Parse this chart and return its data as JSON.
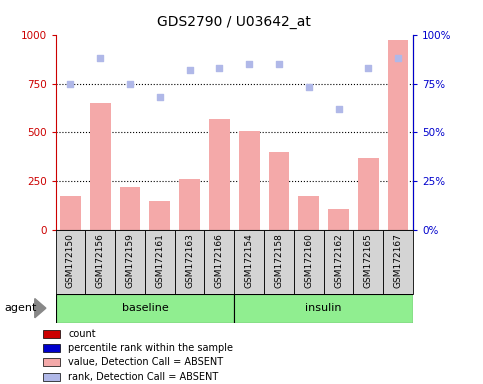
{
  "title": "GDS2790 / U03642_at",
  "samples": [
    "GSM172150",
    "GSM172156",
    "GSM172159",
    "GSM172161",
    "GSM172163",
    "GSM172166",
    "GSM172154",
    "GSM172158",
    "GSM172160",
    "GSM172162",
    "GSM172165",
    "GSM172167"
  ],
  "bar_values": [
    175,
    650,
    220,
    150,
    260,
    570,
    510,
    400,
    175,
    110,
    370,
    970
  ],
  "scatter_values": [
    75,
    88,
    75,
    68,
    82,
    83,
    85,
    85,
    73,
    62,
    83,
    88
  ],
  "bar_color_absent": "#f4a9a9",
  "scatter_color_absent": "#b0b8e8",
  "left_ylim": [
    0,
    1000
  ],
  "right_ylim": [
    0,
    100
  ],
  "left_yticks": [
    0,
    250,
    500,
    750,
    1000
  ],
  "right_yticks": [
    0,
    25,
    50,
    75,
    100
  ],
  "right_yticklabels": [
    "0%",
    "25%",
    "50%",
    "75%",
    "100%"
  ],
  "baseline_samples": 6,
  "insulin_samples": 6,
  "baseline_label": "baseline",
  "insulin_label": "insulin",
  "agent_label": "agent",
  "legend_items": [
    {
      "label": "count",
      "color": "#cc0000"
    },
    {
      "label": "percentile rank within the sample",
      "color": "#0000cc"
    },
    {
      "label": "value, Detection Call = ABSENT",
      "color": "#f4a9a9"
    },
    {
      "label": "rank, Detection Call = ABSENT",
      "color": "#b0b8e8"
    }
  ],
  "bg_color": "#d4d4d4",
  "agent_color": "#90ee90",
  "title_fontsize": 10,
  "tick_label_fontsize": 6.5,
  "left_axis_color": "#cc0000",
  "right_axis_color": "#0000cc"
}
